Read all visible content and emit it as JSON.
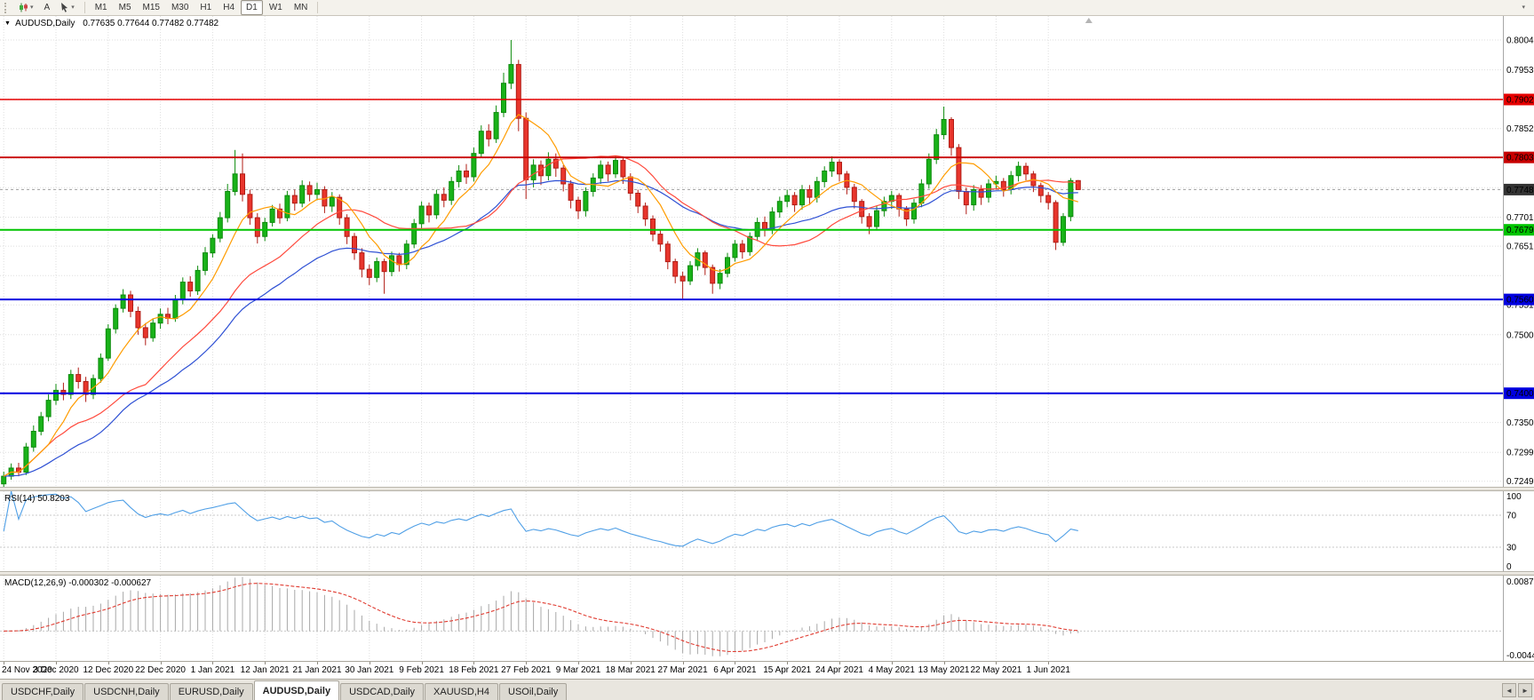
{
  "toolbar": {
    "chart_type_caret": "▾",
    "text_tool_label": "A",
    "draw_tool_caret": "▾",
    "timeframes": [
      "M1",
      "M5",
      "M15",
      "M30",
      "H1",
      "H4",
      "D1",
      "W1",
      "MN"
    ],
    "active_timeframe": "D1",
    "overflow_caret": "▾"
  },
  "chart": {
    "title_caret": "▼",
    "title_symbol": "AUDUSD,Daily",
    "title_ohlc": "0.77635 0.77644 0.77482 0.77482"
  },
  "chart_data": {
    "type": "candlestick",
    "symbol": "AUDUSD",
    "timeframe": "Daily",
    "ohlc_display": {
      "open": "0.77635",
      "high": "0.77644",
      "low": "0.77482",
      "close": "0.77482"
    },
    "current_price": {
      "value": 0.77482,
      "label": "0.77482",
      "badge_color": "#333333"
    },
    "y_axis": {
      "min": 0.724,
      "max": 0.8045,
      "labels": [
        {
          "v": 0.8004,
          "t": "0.80040"
        },
        {
          "v": 0.7953,
          "t": "0.79530"
        },
        {
          "v": 0.78525,
          "t": "0.78525"
        },
        {
          "v": 0.7701,
          "t": "0.77010"
        },
        {
          "v": 0.76515,
          "t": "0.76515"
        },
        {
          "v": 0.7551,
          "t": "0.75510"
        },
        {
          "v": 0.75,
          "t": "0.75000"
        },
        {
          "v": 0.735,
          "t": "0.73500"
        },
        {
          "v": 0.7299,
          "t": "0.72990"
        },
        {
          "v": 0.72495,
          "t": "0.72495"
        }
      ],
      "grid": [
        0.72495,
        0.7299,
        0.735,
        0.73995,
        0.74495,
        0.75,
        0.7551,
        0.7601,
        0.76515,
        0.7701,
        0.77515,
        0.7802,
        0.78525,
        0.7903,
        0.7953,
        0.8004
      ]
    },
    "levels": [
      {
        "value": 0.79023,
        "label": "0.79023",
        "color": "#e60000",
        "width": 1.4
      },
      {
        "value": 0.78032,
        "label": "0.78032",
        "color": "#c80000",
        "width": 1.8
      },
      {
        "value": 0.76794,
        "label": "0.76794",
        "color": "#00c400",
        "width": 2
      },
      {
        "value": 0.75603,
        "label": "0.75603",
        "color": "#0000e0",
        "width": 2
      },
      {
        "value": 0.74,
        "label": "0.74000",
        "color": "#0000e0",
        "width": 2
      }
    ],
    "x_labels": [
      {
        "t": "24 Nov 2020",
        "i": 0
      },
      {
        "t": "3 Dec 2020",
        "i": 7
      },
      {
        "t": "12 Dec 2020",
        "i": 14
      },
      {
        "t": "22 Dec 2020",
        "i": 21
      },
      {
        "t": "1 Jan 2021",
        "i": 28
      },
      {
        "t": "12 Jan 2021",
        "i": 35
      },
      {
        "t": "21 Jan 2021",
        "i": 42
      },
      {
        "t": "30 Jan 2021",
        "i": 49
      },
      {
        "t": "9 Feb 2021",
        "i": 56
      },
      {
        "t": "18 Feb 2021",
        "i": 63
      },
      {
        "t": "27 Feb 2021",
        "i": 70
      },
      {
        "t": "9 Mar 2021",
        "i": 77
      },
      {
        "t": "18 Mar 2021",
        "i": 84
      },
      {
        "t": "27 Mar 2021",
        "i": 91
      },
      {
        "t": "6 Apr 2021",
        "i": 98
      },
      {
        "t": "15 Apr 2021",
        "i": 105
      },
      {
        "t": "24 Apr 2021",
        "i": 112
      },
      {
        "t": "4 May 2021",
        "i": 119
      },
      {
        "t": "13 May 2021",
        "i": 126
      },
      {
        "t": "22 May 2021",
        "i": 133
      },
      {
        "t": "1 Jun 2021",
        "i": 140
      }
    ],
    "first_open": 0.7245,
    "candles_hlc": [
      [
        0.7266,
        0.7239,
        0.7258
      ],
      [
        0.728,
        0.7252,
        0.7272
      ],
      [
        0.7281,
        0.7258,
        0.7265
      ],
      [
        0.7315,
        0.726,
        0.7308
      ],
      [
        0.7345,
        0.73,
        0.7335
      ],
      [
        0.7368,
        0.7328,
        0.736
      ],
      [
        0.7398,
        0.7352,
        0.7388
      ],
      [
        0.7416,
        0.738,
        0.7405
      ],
      [
        0.7418,
        0.7388,
        0.7398
      ],
      [
        0.744,
        0.739,
        0.7432
      ],
      [
        0.7444,
        0.7408,
        0.742
      ],
      [
        0.7428,
        0.7385,
        0.7398
      ],
      [
        0.7432,
        0.739,
        0.7425
      ],
      [
        0.7468,
        0.7418,
        0.746
      ],
      [
        0.7518,
        0.7455,
        0.751
      ],
      [
        0.7552,
        0.7502,
        0.7545
      ],
      [
        0.7578,
        0.7538,
        0.7568
      ],
      [
        0.7575,
        0.753,
        0.754
      ],
      [
        0.7548,
        0.75,
        0.7512
      ],
      [
        0.752,
        0.7482,
        0.7495
      ],
      [
        0.7528,
        0.7488,
        0.752
      ],
      [
        0.7545,
        0.751,
        0.7535
      ],
      [
        0.7546,
        0.7518,
        0.7528
      ],
      [
        0.7568,
        0.7522,
        0.756
      ],
      [
        0.7598,
        0.7552,
        0.759
      ],
      [
        0.76,
        0.7565,
        0.7575
      ],
      [
        0.7618,
        0.7568,
        0.761
      ],
      [
        0.765,
        0.7602,
        0.764
      ],
      [
        0.7672,
        0.7632,
        0.7665
      ],
      [
        0.771,
        0.7658,
        0.77
      ],
      [
        0.7758,
        0.7692,
        0.7745
      ],
      [
        0.7816,
        0.7738,
        0.7775
      ],
      [
        0.781,
        0.7728,
        0.774
      ],
      [
        0.7748,
        0.7688,
        0.77
      ],
      [
        0.7708,
        0.7656,
        0.7668
      ],
      [
        0.77,
        0.766,
        0.7692
      ],
      [
        0.7722,
        0.7685,
        0.7715
      ],
      [
        0.7724,
        0.769,
        0.77
      ],
      [
        0.7746,
        0.7694,
        0.7738
      ],
      [
        0.7748,
        0.7712,
        0.7725
      ],
      [
        0.7764,
        0.7718,
        0.7755
      ],
      [
        0.7762,
        0.7728,
        0.774
      ],
      [
        0.776,
        0.773,
        0.7748
      ],
      [
        0.7754,
        0.7708,
        0.772
      ],
      [
        0.7744,
        0.771,
        0.7735
      ],
      [
        0.774,
        0.7688,
        0.77
      ],
      [
        0.7706,
        0.7655,
        0.7668
      ],
      [
        0.7674,
        0.7628,
        0.764
      ],
      [
        0.7648,
        0.7598,
        0.7612
      ],
      [
        0.762,
        0.7585,
        0.7598
      ],
      [
        0.7632,
        0.759,
        0.7625
      ],
      [
        0.763,
        0.757,
        0.7608
      ],
      [
        0.7642,
        0.76,
        0.7635
      ],
      [
        0.764,
        0.7608,
        0.762
      ],
      [
        0.7662,
        0.7612,
        0.7655
      ],
      [
        0.7698,
        0.7648,
        0.769
      ],
      [
        0.7728,
        0.7682,
        0.772
      ],
      [
        0.7726,
        0.7692,
        0.7705
      ],
      [
        0.7748,
        0.7698,
        0.774
      ],
      [
        0.7752,
        0.7718,
        0.773
      ],
      [
        0.777,
        0.7722,
        0.7762
      ],
      [
        0.779,
        0.7752,
        0.778
      ],
      [
        0.7792,
        0.7758,
        0.777
      ],
      [
        0.782,
        0.7762,
        0.781
      ],
      [
        0.7858,
        0.7802,
        0.7848
      ],
      [
        0.786,
        0.7822,
        0.7835
      ],
      [
        0.7892,
        0.7828,
        0.788
      ],
      [
        0.7948,
        0.7872,
        0.793
      ],
      [
        0.8004,
        0.792,
        0.7962
      ],
      [
        0.797,
        0.7848,
        0.787
      ],
      [
        0.788,
        0.7732,
        0.7765
      ],
      [
        0.78,
        0.7752,
        0.779
      ],
      [
        0.7798,
        0.7756,
        0.7772
      ],
      [
        0.7812,
        0.7764,
        0.78
      ],
      [
        0.781,
        0.777,
        0.7785
      ],
      [
        0.779,
        0.7745,
        0.7758
      ],
      [
        0.7764,
        0.7716,
        0.773
      ],
      [
        0.7736,
        0.7698,
        0.7712
      ],
      [
        0.7752,
        0.7702,
        0.7745
      ],
      [
        0.7776,
        0.7736,
        0.7768
      ],
      [
        0.7798,
        0.7758,
        0.779
      ],
      [
        0.7796,
        0.7762,
        0.7775
      ],
      [
        0.7806,
        0.7768,
        0.7798
      ],
      [
        0.7802,
        0.7758,
        0.777
      ],
      [
        0.7776,
        0.773,
        0.7742
      ],
      [
        0.7748,
        0.7708,
        0.772
      ],
      [
        0.7726,
        0.7686,
        0.7698
      ],
      [
        0.7704,
        0.766,
        0.7672
      ],
      [
        0.7678,
        0.7642,
        0.7655
      ],
      [
        0.766,
        0.7612,
        0.7625
      ],
      [
        0.763,
        0.7588,
        0.76
      ],
      [
        0.7608,
        0.7562,
        0.7592
      ],
      [
        0.7626,
        0.7585,
        0.7618
      ],
      [
        0.7648,
        0.761,
        0.764
      ],
      [
        0.7644,
        0.7602,
        0.7615
      ],
      [
        0.762,
        0.757,
        0.7588
      ],
      [
        0.7612,
        0.7578,
        0.7605
      ],
      [
        0.764,
        0.7598,
        0.7632
      ],
      [
        0.7662,
        0.7625,
        0.7655
      ],
      [
        0.7662,
        0.763,
        0.7642
      ],
      [
        0.7675,
        0.7635,
        0.7668
      ],
      [
        0.77,
        0.766,
        0.7692
      ],
      [
        0.7702,
        0.7668,
        0.768
      ],
      [
        0.7718,
        0.7672,
        0.771
      ],
      [
        0.7736,
        0.77,
        0.7728
      ],
      [
        0.7748,
        0.7718,
        0.7738
      ],
      [
        0.7744,
        0.771,
        0.7722
      ],
      [
        0.7756,
        0.7714,
        0.7748
      ],
      [
        0.7756,
        0.7722,
        0.7735
      ],
      [
        0.777,
        0.7726,
        0.7762
      ],
      [
        0.7788,
        0.7752,
        0.778
      ],
      [
        0.7805,
        0.777,
        0.7795
      ],
      [
        0.78,
        0.7762,
        0.7775
      ],
      [
        0.778,
        0.774,
        0.7752
      ],
      [
        0.7758,
        0.7716,
        0.7728
      ],
      [
        0.7732,
        0.769,
        0.7702
      ],
      [
        0.7708,
        0.7672,
        0.7685
      ],
      [
        0.772,
        0.7678,
        0.7712
      ],
      [
        0.7736,
        0.7702,
        0.7728
      ],
      [
        0.7746,
        0.7715,
        0.7738
      ],
      [
        0.7742,
        0.7702,
        0.7715
      ],
      [
        0.772,
        0.7686,
        0.7698
      ],
      [
        0.7732,
        0.769,
        0.7725
      ],
      [
        0.7766,
        0.7718,
        0.7758
      ],
      [
        0.781,
        0.775,
        0.78
      ],
      [
        0.7852,
        0.7792,
        0.7842
      ],
      [
        0.789,
        0.7834,
        0.7868
      ],
      [
        0.7872,
        0.7806,
        0.782
      ],
      [
        0.7826,
        0.7732,
        0.7745
      ],
      [
        0.7752,
        0.7706,
        0.7722
      ],
      [
        0.7756,
        0.7712,
        0.7748
      ],
      [
        0.7756,
        0.7722,
        0.7735
      ],
      [
        0.7766,
        0.7726,
        0.7758
      ],
      [
        0.7772,
        0.7748,
        0.7762
      ],
      [
        0.7768,
        0.7736,
        0.7748
      ],
      [
        0.778,
        0.774,
        0.7772
      ],
      [
        0.7796,
        0.7762,
        0.7788
      ],
      [
        0.7794,
        0.7764,
        0.7775
      ],
      [
        0.778,
        0.7744,
        0.7755
      ],
      [
        0.776,
        0.7726,
        0.7738
      ],
      [
        0.7744,
        0.7714,
        0.7726
      ],
      [
        0.773,
        0.7645,
        0.7658
      ],
      [
        0.7708,
        0.7652,
        0.7702
      ],
      [
        0.7768,
        0.7694,
        0.77635
      ],
      [
        0.77644,
        0.77482,
        0.77482
      ]
    ],
    "moving_averages": [
      {
        "name": "slow",
        "type": "ema",
        "period": 30,
        "color": "#2f51d4"
      },
      {
        "name": "medium",
        "type": "sma",
        "period": 20,
        "color": "#ff4a3d"
      },
      {
        "name": "fast",
        "type": "sma",
        "period": 7,
        "color": "#ff9c00"
      }
    ],
    "colors": {
      "up_fill": "#19b219",
      "up_stroke": "#0c8a0c",
      "down_fill": "#e8352c",
      "down_stroke": "#b01c15",
      "grid": "#dedede",
      "axis_line": "#a6a6a6",
      "bid_line": "#9e9e9e",
      "shift_marker": "#b4b4b4"
    },
    "rsi": {
      "label": "RSI(14) 50.8203",
      "period": 14,
      "color": "#4f9fe6",
      "levels": [
        70,
        30
      ],
      "scale": [
        {
          "v": 100,
          "t": "100"
        },
        {
          "v": 70,
          "t": "70"
        },
        {
          "v": 30,
          "t": "30"
        },
        {
          "v": 0,
          "t": "0"
        }
      ]
    },
    "macd": {
      "label": "MACD(12,26,9) -0.000302 -0.000627",
      "fast": 12,
      "slow": 26,
      "signal_period": 9,
      "hist_color": "#a8a8a8",
      "signal_color": "#e03c31",
      "max": 0.008782,
      "min": -0.004451,
      "scale": [
        {
          "v": 0.008782,
          "t": "0.008782"
        },
        {
          "v": -0.004451,
          "t": "-0.004451"
        }
      ]
    }
  },
  "tabs": {
    "items": [
      "USDCHF,Daily",
      "USDCNH,Daily",
      "EURUSD,Daily",
      "AUDUSD,Daily",
      "USDCAD,Daily",
      "XAUUSD,H4",
      "USOil,Daily"
    ],
    "active_index": 3,
    "scroll_left": "◄",
    "scroll_right": "►"
  }
}
